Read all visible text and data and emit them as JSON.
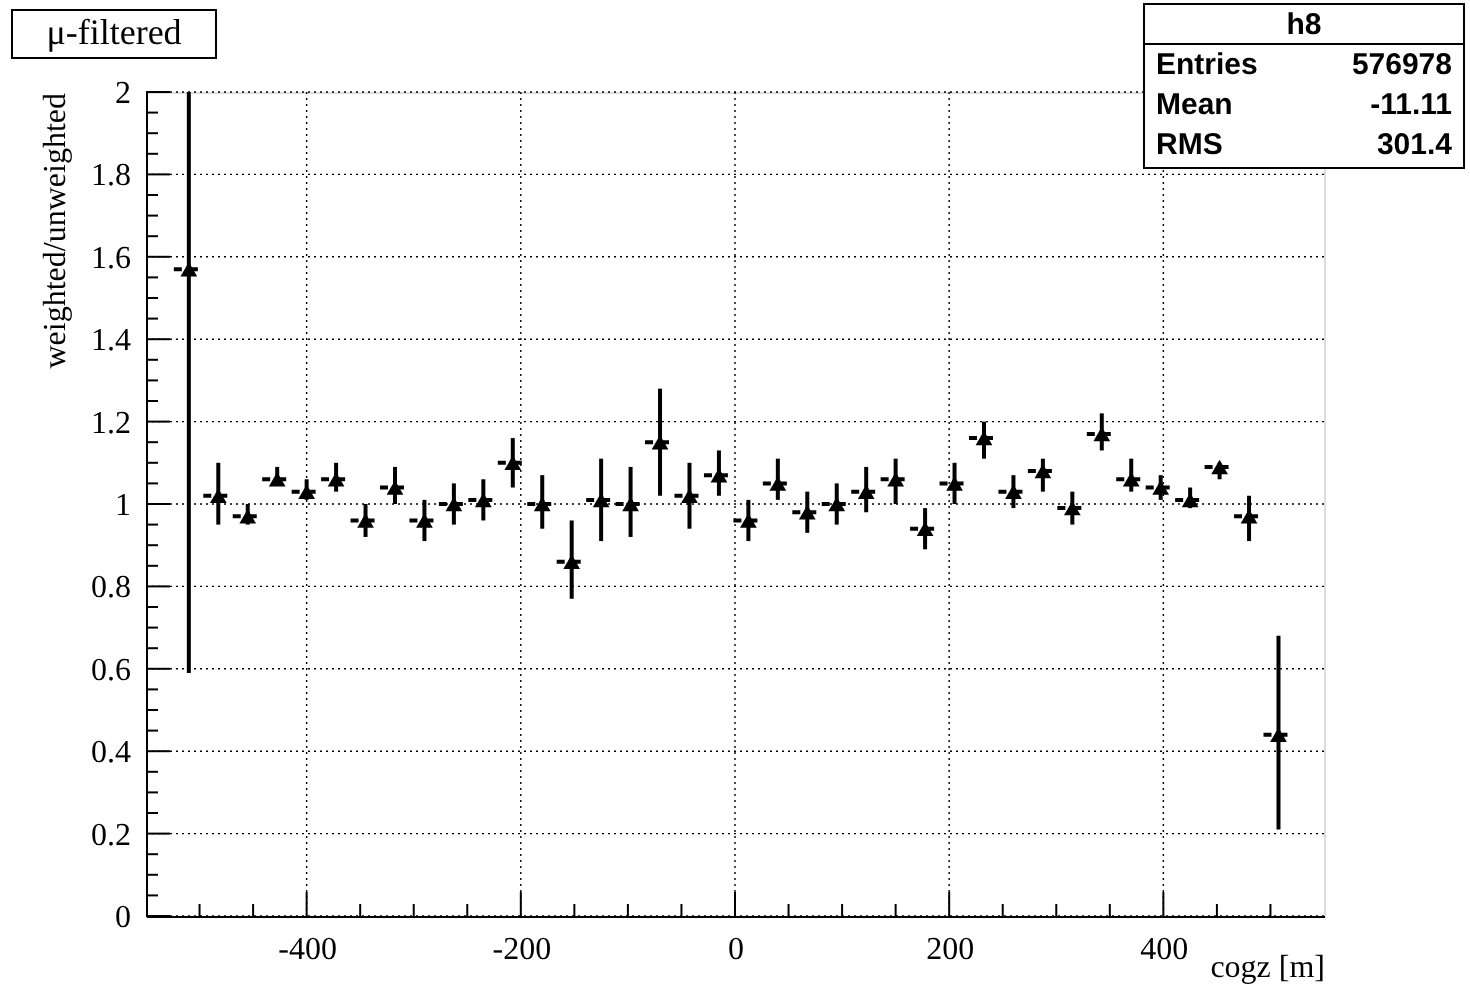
{
  "chart_data": {
    "type": "scatter",
    "title": "μ-filtered",
    "xlabel": "cogz [m]",
    "ylabel": "weighted/unweighted",
    "annotations": [
      "h8",
      "Entries 576978",
      "Mean -11.11",
      "RMS 301.4"
    ],
    "x": [
      -510,
      -482.5,
      -455,
      -427.5,
      -400,
      -372.5,
      -345,
      -317.5,
      -290,
      -262.5,
      -235,
      -207.5,
      -180,
      -152.5,
      -125,
      -97.5,
      -70,
      -42.5,
      -15,
      12.5,
      40,
      67.5,
      95,
      122.5,
      150,
      177.5,
      205,
      232.5,
      260,
      287.5,
      315,
      342.5,
      370,
      397.5,
      425,
      452.5,
      480,
      507.5
    ],
    "series": [
      {
        "color": "#000000",
        "values": [
          1.57,
          1.02,
          0.97,
          1.06,
          1.03,
          1.06,
          0.96,
          1.04,
          0.96,
          1.0,
          1.01,
          1.1,
          1.0,
          0.86,
          1.01,
          1.0,
          1.15,
          1.02,
          1.07,
          0.96,
          1.05,
          0.98,
          1.0,
          1.03,
          1.06,
          0.94,
          1.05,
          1.16,
          1.03,
          1.08,
          0.99,
          1.17,
          1.06,
          1.04,
          1.01,
          1.09,
          0.97,
          0.44
        ],
        "errors": [
          [
            0.59,
            2.0
          ],
          [
            0.95,
            1.1
          ],
          [
            0.95,
            1.0
          ],
          [
            1.05,
            1.09
          ],
          [
            1.01,
            1.06
          ],
          [
            1.03,
            1.1
          ],
          [
            0.92,
            1.0
          ],
          [
            1.0,
            1.09
          ],
          [
            0.91,
            1.01
          ],
          [
            0.95,
            1.05
          ],
          [
            0.96,
            1.06
          ],
          [
            1.04,
            1.16
          ],
          [
            0.94,
            1.07
          ],
          [
            0.77,
            0.96
          ],
          [
            0.91,
            1.11
          ],
          [
            0.92,
            1.09
          ],
          [
            1.02,
            1.28
          ],
          [
            0.94,
            1.1
          ],
          [
            1.02,
            1.13
          ],
          [
            0.91,
            1.01
          ],
          [
            1.01,
            1.11
          ],
          [
            0.93,
            1.03
          ],
          [
            0.95,
            1.05
          ],
          [
            0.98,
            1.09
          ],
          [
            1.0,
            1.11
          ],
          [
            0.89,
            0.99
          ],
          [
            1.0,
            1.1
          ],
          [
            1.11,
            1.2
          ],
          [
            0.99,
            1.07
          ],
          [
            1.03,
            1.11
          ],
          [
            0.95,
            1.03
          ],
          [
            1.13,
            1.22
          ],
          [
            1.03,
            1.11
          ],
          [
            1.01,
            1.07
          ],
          [
            0.99,
            1.04
          ],
          [
            1.06,
            1.1
          ],
          [
            0.91,
            1.02
          ],
          [
            0.21,
            0.68
          ]
        ],
        "xerrors": [
          14,
          14,
          14,
          14,
          14,
          14,
          14,
          14,
          14,
          14,
          14,
          14,
          14,
          14,
          14,
          14,
          14,
          14,
          14,
          14,
          14,
          14,
          14,
          14,
          14,
          14,
          14,
          14,
          14,
          14,
          14,
          14,
          14,
          14,
          14,
          14,
          14,
          14
        ]
      }
    ],
    "marker": "triangle",
    "grid": true,
    "xlim": [
      -550,
      550
    ],
    "xticks": [
      {
        "value": -500,
        "label": null
      },
      {
        "value": -450,
        "label": null
      },
      -400,
      {
        "value": -350,
        "label": null
      },
      {
        "value": -300,
        "label": null
      },
      {
        "value": -250,
        "label": null
      },
      -200,
      {
        "value": -150,
        "label": null
      },
      {
        "value": -100,
        "label": null
      },
      {
        "value": -50,
        "label": null
      },
      0,
      {
        "value": 50,
        "label": null
      },
      {
        "value": 100,
        "label": null
      },
      {
        "value": 150,
        "label": null
      },
      200,
      {
        "value": 250,
        "label": null
      },
      {
        "value": 300,
        "label": null
      },
      {
        "value": 350,
        "label": null
      },
      400,
      {
        "value": 450,
        "label": null
      },
      {
        "value": 500,
        "label": null
      }
    ],
    "ylim": [
      0,
      2
    ],
    "yticks": [
      0,
      {
        "value": 0.05,
        "label": null
      },
      {
        "value": 0.1,
        "label": null
      },
      {
        "value": 0.15,
        "label": null
      },
      0.2,
      {
        "value": 0.25,
        "label": null
      },
      {
        "value": 0.3,
        "label": null
      },
      {
        "value": 0.35,
        "label": null
      },
      0.4,
      {
        "value": 0.45,
        "label": null
      },
      {
        "value": 0.5,
        "label": null
      },
      {
        "value": 0.55,
        "label": null
      },
      0.6,
      {
        "value": 0.65,
        "label": null
      },
      {
        "value": 0.7,
        "label": null
      },
      {
        "value": 0.75,
        "label": null
      },
      0.8,
      {
        "value": 0.85,
        "label": null
      },
      {
        "value": 0.9,
        "label": null
      },
      {
        "value": 0.95,
        "label": null
      },
      1,
      {
        "value": 1.05,
        "label": null
      },
      {
        "value": 1.1,
        "label": null
      },
      {
        "value": 1.15,
        "label": null
      },
      1.2,
      {
        "value": 1.25,
        "label": null
      },
      {
        "value": 1.3,
        "label": null
      },
      {
        "value": 1.35,
        "label": null
      },
      1.4,
      {
        "value": 1.45,
        "label": null
      },
      {
        "value": 1.5,
        "label": null
      },
      {
        "value": 1.55,
        "label": null
      },
      1.6,
      {
        "value": 1.65,
        "label": null
      },
      {
        "value": 1.7,
        "label": null
      },
      {
        "value": 1.75,
        "label": null
      },
      1.8,
      {
        "value": 1.85,
        "label": null
      },
      {
        "value": 1.9,
        "label": null
      },
      {
        "value": 1.95,
        "label": null
      },
      2
    ]
  }
}
